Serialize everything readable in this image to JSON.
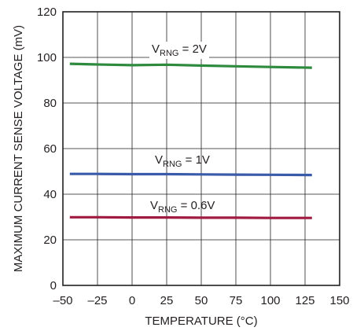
{
  "chart_data": {
    "type": "line",
    "xlabel": "TEMPERATURE (°C)",
    "ylabel": "MAXIMUM CURRENT SENSE VOLTAGE (mV)",
    "xlim": [
      -50,
      150
    ],
    "ylim": [
      0,
      120
    ],
    "xticks": [
      -50,
      -25,
      0,
      25,
      50,
      75,
      100,
      125,
      150
    ],
    "xtick_labels": [
      "–50",
      "–25",
      "0",
      "25",
      "50",
      "75",
      "100",
      "125",
      "150"
    ],
    "yticks": [
      0,
      20,
      40,
      60,
      80,
      100,
      120
    ],
    "ytick_labels": [
      "0",
      "20",
      "40",
      "60",
      "80",
      "100",
      "120"
    ],
    "grid": true,
    "series": [
      {
        "name_main": "V",
        "name_sub": "RNG",
        "name_rest": " = 2V",
        "color": "#2e8b3e",
        "x": [
          -45,
          -25,
          0,
          25,
          50,
          75,
          100,
          130
        ],
        "y": [
          97.2,
          96.9,
          96.6,
          96.8,
          96.4,
          96.1,
          95.8,
          95.5
        ]
      },
      {
        "name_main": "V",
        "name_sub": "RNG",
        "name_rest": " = 1V",
        "color": "#3a5ba9",
        "x": [
          -45,
          -25,
          0,
          25,
          50,
          75,
          100,
          130
        ],
        "y": [
          48.9,
          48.9,
          48.8,
          48.8,
          48.7,
          48.6,
          48.5,
          48.4
        ]
      },
      {
        "name_main": "V",
        "name_sub": "RNG",
        "name_rest": " = 0.6V",
        "color": "#a01b3f",
        "x": [
          -45,
          -25,
          0,
          25,
          50,
          75,
          100,
          130
        ],
        "y": [
          29.9,
          29.9,
          29.8,
          29.8,
          29.7,
          29.7,
          29.6,
          29.6
        ]
      }
    ]
  }
}
